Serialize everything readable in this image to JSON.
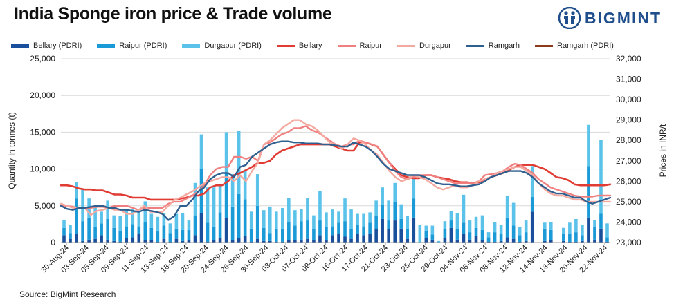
{
  "title": "India Sponge iron price & Trade volume",
  "logo_text": "BIGMINT",
  "source": "Source: BigMint Research",
  "colors": {
    "bellary_bar": "#1a4f9c",
    "raipur_bar": "#1a9ad6",
    "durgapur_bar": "#5bc3ea",
    "bellary_line": "#e03c34",
    "raipur_line": "#f08080",
    "durgapur_line": "#f4a9a0",
    "ramgarh_line": "#2f5f8f",
    "ramgarh_pdri": "#8b3a1a",
    "logo": "#1f4e8c"
  },
  "chart_data": {
    "type": "bar+line",
    "title": "India Sponge iron price & Trade volume",
    "ylabel_left": "Quantity in tonnes (t)",
    "ylabel_right": "Prices in INR/t",
    "ylim_left": [
      0,
      25000
    ],
    "ylim_right": [
      23000,
      32000
    ],
    "yticks_left": [
      "0",
      "5,000",
      "10,000",
      "15,000",
      "20,000",
      "25,000"
    ],
    "yticks_right": [
      "23,000",
      "24,000",
      "25,000",
      "26,000",
      "27,000",
      "28,000",
      "29,000",
      "30,000",
      "31,000",
      "32,000"
    ],
    "xtick_labels": [
      "30-Aug-24",
      "03-Sep-24",
      "05-Sep-24",
      "09-Sep-24",
      "11-Sep-24",
      "13-Sep-24",
      "18-Sep-24",
      "20-Sep-24",
      "24-Sep-24",
      "26-Sep-24",
      "30-Sep-24",
      "03-Oct-24",
      "07-Oct-24",
      "09-Oct-24",
      "15-Oct-24",
      "17-Oct-24",
      "21-Oct-24",
      "23-Oct-24",
      "25-Oct-24",
      "29-Oct-24",
      "04-Nov-24",
      "06-Nov-24",
      "08-Nov-24",
      "12-Nov-24",
      "14-Nov-24",
      "18-Nov-24",
      "20-Nov-24",
      "22-Nov-24"
    ],
    "legend_position": "top",
    "grid": "horizontal",
    "bar_series": [
      {
        "name": "Bellary (PDRI)",
        "color": "#1a4f9c",
        "values": [
          1000,
          500,
          1200,
          200,
          400,
          500,
          1000,
          400,
          200,
          100,
          600,
          700,
          1200,
          300,
          300,
          100,
          500,
          100,
          500,
          200,
          300,
          1000,
          4000,
          100,
          300,
          600,
          3300,
          300,
          600,
          900,
          100,
          500,
          200,
          200,
          100,
          100,
          300,
          300,
          400,
          500,
          300,
          1000,
          300,
          1000,
          1200,
          800,
          500,
          1200,
          1000,
          1200,
          1800,
          3200,
          1800,
          3000,
          1900,
          500,
          3400,
          0,
          600,
          400,
          0,
          600,
          2000,
          400,
          1200,
          400,
          900,
          300,
          100,
          100,
          200,
          700,
          500,
          100,
          200,
          4200,
          0,
          200,
          300,
          0,
          200,
          100,
          100,
          200,
          3400,
          400,
          1900,
          100
        ]
      },
      {
        "name": "Raipur (PDRI)",
        "color": "#1a9ad6",
        "values": [
          1000,
          800,
          4800,
          2700,
          3000,
          1600,
          1600,
          2800,
          1800,
          1500,
          1600,
          1800,
          1000,
          2500,
          1700,
          1400,
          1800,
          1200,
          1400,
          1500,
          1400,
          2700,
          6000,
          2600,
          1800,
          3500,
          6200,
          4600,
          6000,
          5000,
          1800,
          4500,
          1800,
          1100,
          1800,
          1800,
          2500,
          2000,
          2500,
          2500,
          1500,
          2000,
          1800,
          1200,
          1500,
          2100,
          1300,
          1200,
          1200,
          1500,
          1800,
          2000,
          1200,
          2500,
          1300,
          1300,
          2600,
          0,
          1000,
          700,
          0,
          1200,
          1000,
          1400,
          1500,
          1000,
          1100,
          1400,
          600,
          1300,
          1000,
          2700,
          1800,
          900,
          1200,
          2000,
          0,
          1700,
          1400,
          0,
          1000,
          1100,
          1300,
          800,
          7000,
          1700,
          2000,
          600
        ]
      },
      {
        "name": "Durgapur (PDRI)",
        "color": "#5bc3ea",
        "values": [
          1100,
          1100,
          2200,
          4400,
          2600,
          3000,
          1600,
          2500,
          1700,
          2000,
          2400,
          2100,
          2000,
          2800,
          1900,
          2000,
          1700,
          1300,
          2000,
          2300,
          1300,
          4400,
          4700,
          4800,
          5400,
          3700,
          5500,
          4400,
          8600,
          4000,
          2300,
          4300,
          2400,
          3600,
          2300,
          2800,
          3300,
          2100,
          1700,
          3100,
          1900,
          4000,
          2000,
          2300,
          1500,
          3100,
          2700,
          1500,
          1700,
          1400,
          2100,
          2300,
          2700,
          2600,
          2000,
          1800,
          2700,
          2400,
          700,
          1200,
          200,
          1100,
          1300,
          2200,
          3800,
          1600,
          1500,
          2000,
          700,
          1400,
          1200,
          3000,
          3100,
          1100,
          1600,
          4200,
          0,
          800,
          1100,
          0,
          800,
          1500,
          1800,
          1400,
          5600,
          1000,
          10100,
          1900
        ]
      },
      {
        "name": "Ramgarh (PDRI)",
        "color": "#8b3a1a",
        "values": []
      }
    ],
    "line_series": [
      {
        "name": "Bellary",
        "color": "#e03c34",
        "width": 2.6,
        "values": [
          25800,
          25800,
          25750,
          25650,
          25600,
          25600,
          25550,
          25550,
          25450,
          25350,
          25350,
          25300,
          25200,
          25200,
          25200,
          25100,
          25100,
          25100,
          25100,
          25100,
          25150,
          25200,
          25300,
          25300,
          25400,
          25700,
          25800,
          25800,
          26000,
          26300,
          26400,
          26550,
          26700,
          26900,
          26900,
          27000,
          27300,
          27500,
          27600,
          27700,
          27800,
          27800,
          27800,
          27800,
          27800,
          27800,
          27700,
          27600,
          27500,
          27500,
          27900,
          27900,
          27800,
          27700,
          27300,
          26900,
          26600,
          26300,
          26200,
          26150,
          26150,
          26300,
          26300,
          26200,
          26150,
          26100,
          26000,
          25950,
          25950,
          25900,
          25950,
          26100,
          26200,
          26300,
          26400,
          26550,
          26700,
          26800,
          26800,
          26800,
          26700,
          26600,
          26400,
          26200,
          26150,
          26050,
          25850,
          25800,
          25800,
          25800,
          25800,
          25800,
          25850
        ]
      },
      {
        "name": "Raipur",
        "color": "#f08080",
        "width": 2.4,
        "values": [
          24800,
          24800,
          24750,
          24700,
          24700,
          24700,
          24750,
          24750,
          24700,
          24800,
          24800,
          24800,
          24700,
          24600,
          24700,
          24700,
          24700,
          24700,
          24900,
          25000,
          25000,
          25150,
          25300,
          25500,
          25800,
          26300,
          26600,
          26700,
          26700,
          27200,
          27200,
          27100,
          27200,
          27000,
          27800,
          27900,
          28100,
          28300,
          28400,
          28600,
          28600,
          28700,
          28500,
          28400,
          28200,
          28000,
          27800,
          27700,
          27800,
          27800,
          28000,
          27900,
          27800,
          27700,
          27300,
          26900,
          26500,
          26200,
          26100,
          26200,
          26300,
          26300,
          26300,
          26200,
          26100,
          26000,
          25900,
          25900,
          25900,
          25900,
          26000,
          26300,
          26350,
          26400,
          26500,
          26700,
          26850,
          26800,
          26600,
          26400,
          26100,
          25900,
          25700,
          25600,
          25500,
          25400,
          25300,
          25250,
          25250,
          25250,
          25300,
          25300,
          25300
        ]
      },
      {
        "name": "Durgapur",
        "color": "#f4a9a0",
        "width": 2.4,
        "values": [
          24900,
          24800,
          24700,
          24700,
          24700,
          24350,
          24550,
          24600,
          24700,
          24600,
          24600,
          24400,
          24400,
          24600,
          24800,
          24500,
          24500,
          24500,
          24800,
          25100,
          25200,
          25350,
          25500,
          25700,
          25900,
          26000,
          26100,
          26200,
          26200,
          26000,
          26300,
          26000,
          26500,
          26900,
          27800,
          28000,
          28300,
          28600,
          28800,
          29000,
          29000,
          28800,
          28700,
          28500,
          28200,
          27900,
          27800,
          27600,
          27800,
          28100,
          28000,
          27800,
          27500,
          27300,
          26900,
          26500,
          26200,
          26000,
          26100,
          26300,
          26200,
          26100,
          25900,
          25700,
          25600,
          25700,
          25800,
          25700,
          25700,
          25800,
          26000,
          26100,
          26200,
          26400,
          26500,
          26600,
          26700,
          26700,
          26500,
          26300,
          25900,
          25600,
          25400,
          25300,
          25300,
          25200,
          25100,
          25100,
          25000,
          25000,
          25000,
          25000,
          25000
        ]
      },
      {
        "name": "Ramgarh",
        "color": "#2f5f8f",
        "width": 2.4,
        "values": [
          24800,
          24650,
          24600,
          24700,
          24700,
          24750,
          24800,
          24800,
          24700,
          24700,
          24600,
          24600,
          24550,
          24500,
          24600,
          24550,
          24500,
          24400,
          24100,
          24300,
          24800,
          24800,
          25100,
          25500,
          25700,
          26100,
          26300,
          26400,
          26400,
          26200,
          26700,
          26800,
          27200,
          27400,
          27600,
          27800,
          27900,
          27950,
          27950,
          27900,
          27900,
          27850,
          27850,
          27850,
          27800,
          27800,
          27750,
          27700,
          27700,
          27900,
          27800,
          27700,
          27500,
          27200,
          26850,
          26600,
          26500,
          26400,
          26300,
          26300,
          26300,
          26200,
          26050,
          25900,
          25850,
          25850,
          25800,
          25750,
          25750,
          25800,
          25850,
          26000,
          26200,
          26300,
          26400,
          26500,
          26500,
          26500,
          26400,
          26200,
          25900,
          25700,
          25500,
          25400,
          25400,
          25300,
          25200,
          25200,
          25000,
          24900,
          25000,
          25100,
          25200
        ]
      }
    ]
  }
}
